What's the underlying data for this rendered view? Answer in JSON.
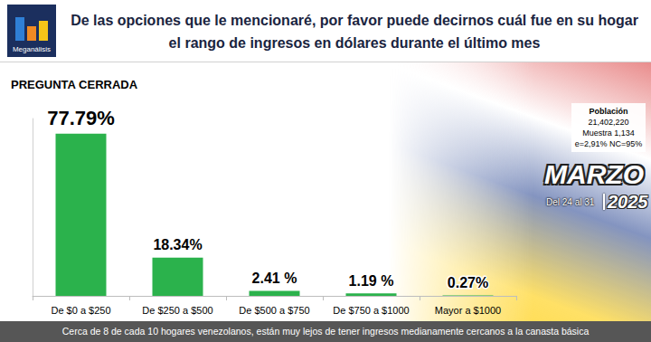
{
  "header": {
    "logo": "Meganálisis"
  },
  "chart_data": {
    "type": "bar",
    "title": "De las opciones que le mencionaré, por favor puede decirnos cuál fue en su hogar el rango de ingresos en dólares durante el último mes",
    "subtitle": "PREGUNTA CERRADA",
    "categories": [
      "De $0 a $250",
      "De $250 a $500",
      "De $500 a $750",
      "De $750 a $1000",
      "Mayor a $1000"
    ],
    "values": [
      77.79,
      18.34,
      2.41,
      1.19,
      0.27
    ],
    "value_labels": [
      "77.79%",
      "18.34%",
      "2.41 %",
      "1.19 %",
      "0.27%"
    ],
    "color": "#2bb24c",
    "ylim": [
      0,
      85
    ],
    "grid": false,
    "data_labels": true,
    "tick_labels": "x"
  },
  "sample_box": {
    "population_label": "Población",
    "population": "21,402,220",
    "sample": "Muestra 1,134",
    "error": "e=2,91% NC=95%"
  },
  "period": {
    "month": "MARZO",
    "days": "Del 24 al 31",
    "year": "2025"
  },
  "footer": "Cerca de 8 de cada 10 hogares venezolanos, están muy lejos de tener ingresos medianamente cercanos a la canasta básica"
}
